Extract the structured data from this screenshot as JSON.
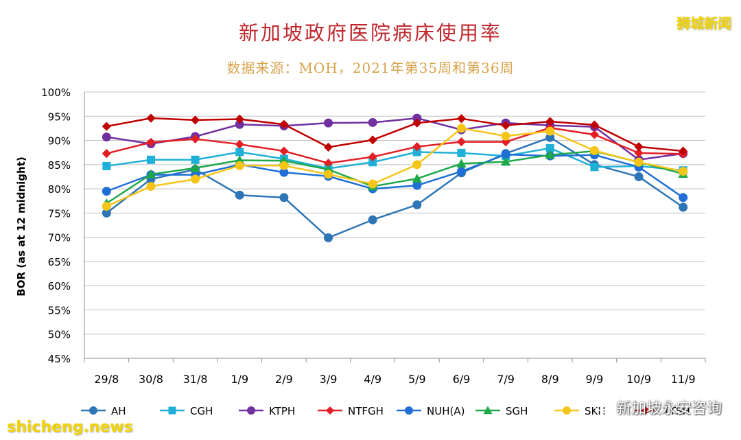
{
  "watermarks": {
    "top_right": "狮城新闻",
    "bottom_left": "shicheng.news",
    "wechat": "新加坡永安咨询"
  },
  "chart_data": {
    "type": "line",
    "title": "新加坡政府医院病床使用率",
    "subtitle": "数据来源：MOH，2021年第35周和第36周",
    "xlabel": "",
    "ylabel": "BOR (as at 12 midnight)",
    "ylim": [
      45,
      100
    ],
    "y_ticks": [
      "45%",
      "50%",
      "55%",
      "60%",
      "65%",
      "70%",
      "75%",
      "80%",
      "85%",
      "90%",
      "95%",
      "100%"
    ],
    "categories": [
      "29/8",
      "30/8",
      "31/8",
      "1/9",
      "2/9",
      "3/9",
      "4/9",
      "5/9",
      "6/9",
      "7/9",
      "8/9",
      "9/9",
      "10/9",
      "11/9"
    ],
    "grid": true,
    "legend_position": "bottom",
    "series": [
      {
        "name": "AH",
        "color": "#2e75b6",
        "marker": "circle",
        "values": [
          75.0,
          82.0,
          84.0,
          78.7,
          78.2,
          69.9,
          73.6,
          76.7,
          83.3,
          87.3,
          90.6,
          85.0,
          82.5,
          76.2
        ]
      },
      {
        "name": "CGH",
        "color": "#1fb0d8",
        "marker": "square",
        "values": [
          84.7,
          86.0,
          86.0,
          87.6,
          86.2,
          84.2,
          85.5,
          87.6,
          87.4,
          86.8,
          88.4,
          84.5,
          84.7,
          83.8
        ]
      },
      {
        "name": "KTPH",
        "color": "#7030a0",
        "marker": "circle",
        "values": [
          90.7,
          89.3,
          90.8,
          93.3,
          93.0,
          93.6,
          93.7,
          94.6,
          92.2,
          93.6,
          93.1,
          92.8,
          86.0,
          87.3
        ]
      },
      {
        "name": "NTFGH",
        "color": "#e31e24",
        "marker": "diamond",
        "values": [
          87.3,
          89.6,
          90.3,
          89.2,
          87.8,
          85.3,
          86.6,
          88.7,
          89.7,
          89.7,
          92.6,
          91.2,
          87.4,
          87.2
        ]
      },
      {
        "name": "NUH(A)",
        "color": "#1f6fd6",
        "marker": "circle",
        "values": [
          79.5,
          82.9,
          82.9,
          85.0,
          83.4,
          82.6,
          80.0,
          80.7,
          83.6,
          87.1,
          86.8,
          87.0,
          84.5,
          78.2
        ]
      },
      {
        "name": "SGH",
        "color": "#1ea84a",
        "marker": "triangle",
        "values": [
          77.0,
          83.0,
          84.3,
          85.9,
          85.8,
          84.0,
          80.5,
          82.1,
          85.2,
          85.6,
          87.0,
          87.8,
          85.5,
          83.1
        ]
      },
      {
        "name": "SKH",
        "color": "#f5c518",
        "marker": "circle",
        "values": [
          76.4,
          80.5,
          82.0,
          84.8,
          84.8,
          83.0,
          81.0,
          85.0,
          92.5,
          90.9,
          91.9,
          87.9,
          85.5,
          83.6
        ]
      },
      {
        "name": "TTSH",
        "color": "#c00000",
        "marker": "diamond",
        "values": [
          92.9,
          94.6,
          94.2,
          94.4,
          93.3,
          88.6,
          90.1,
          93.6,
          94.5,
          93.1,
          93.9,
          93.2,
          88.7,
          87.8
        ]
      }
    ]
  }
}
